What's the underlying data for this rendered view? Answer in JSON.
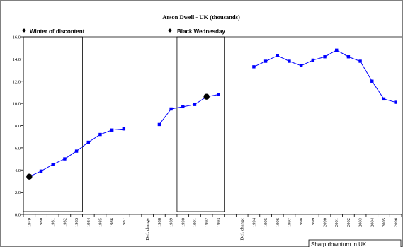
{
  "chart_data": {
    "type": "line",
    "title": "Arson Dwell - UK (thousands)",
    "xlabel": "",
    "ylabel": "",
    "ylim": [
      0,
      16
    ],
    "yticks": [
      "0.0",
      "2.0",
      "4.0",
      "6.0",
      "8.0",
      "10.0",
      "12.0",
      "14.0",
      "16.0"
    ],
    "categories": [
      "1979",
      "1980",
      "1981",
      "1982",
      "1983",
      "1984",
      "1985",
      "1986",
      "1987",
      "",
      "Def. change",
      "1988",
      "1989",
      "1990",
      "1991",
      "1992",
      "1993",
      "",
      "Def. change",
      "1994",
      "1995",
      "1996",
      "1997",
      "1998",
      "1999",
      "2000",
      "2001",
      "2002",
      "2003",
      "2004",
      "2005",
      "2006"
    ],
    "series": [
      {
        "color": "#0000ff",
        "marker": "square",
        "values": [
          3.4,
          3.9,
          4.5,
          5.0,
          5.7,
          6.5,
          7.2,
          7.6,
          7.7,
          null,
          null,
          8.1,
          9.5,
          9.7,
          9.9,
          10.6,
          10.8,
          null,
          null,
          13.3,
          13.8,
          14.3,
          13.8,
          13.4,
          13.9,
          14.2,
          14.8,
          14.2,
          13.8,
          12.0,
          10.4,
          10.1
        ]
      }
    ],
    "grid": false,
    "highlight_points": [
      {
        "category": "1979",
        "value": 3.4
      },
      {
        "category": "1992",
        "value": 10.6
      }
    ],
    "annotations": [
      {
        "text": "Winter of  discontent",
        "bullet": true
      },
      {
        "text": "Black Wednesday",
        "bullet": true
      },
      {
        "text": "Sharp downturn in UK",
        "boxed": true
      }
    ],
    "period_boxes": [
      {
        "from": "1979",
        "to": "1983"
      },
      {
        "from": "1990",
        "to": "1993"
      }
    ]
  }
}
